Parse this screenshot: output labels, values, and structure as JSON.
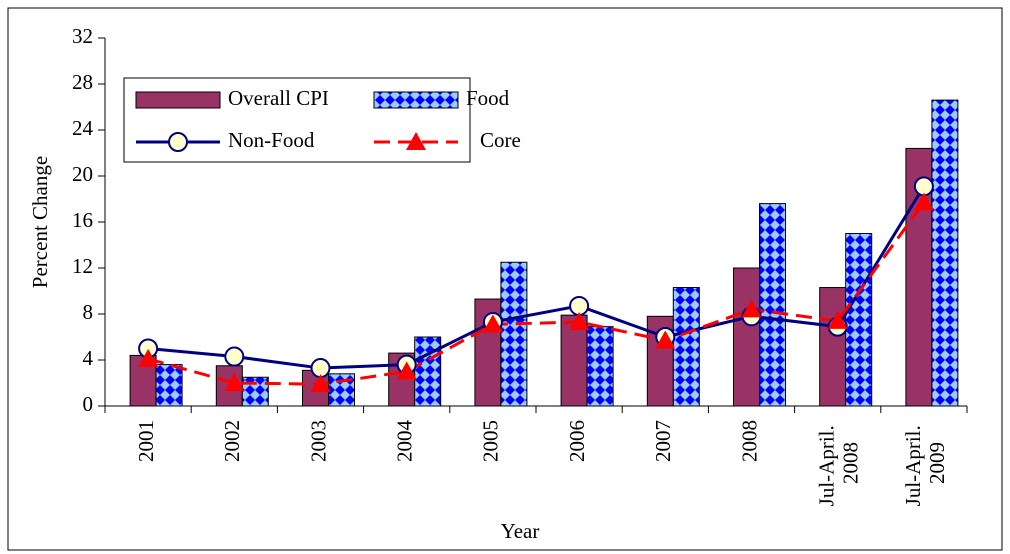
{
  "chart_data": {
    "type": "bar_line",
    "x_label": "Year",
    "y_label": "Percent Change",
    "categories": [
      "2001",
      "2002",
      "2003",
      "2004",
      "2005",
      "2006",
      "2007",
      "2008",
      "Jul-April. 2008",
      "Jul-April. 2009"
    ],
    "series": [
      {
        "name": "Overall CPI",
        "kind": "bar",
        "color": "#993366",
        "values": [
          4.4,
          3.5,
          3.1,
          4.6,
          9.3,
          7.9,
          7.8,
          12.0,
          10.3,
          22.4
        ]
      },
      {
        "name": "Food",
        "kind": "bar",
        "color": "#0000ff",
        "values": [
          3.6,
          2.5,
          2.8,
          6.0,
          12.5,
          6.9,
          10.3,
          17.6,
          15.0,
          26.6
        ]
      },
      {
        "name": "Non-Food",
        "kind": "line",
        "color": "#000080",
        "values": [
          5.0,
          4.3,
          3.3,
          3.6,
          7.3,
          8.7,
          6.0,
          7.8,
          6.9,
          19.1
        ]
      },
      {
        "name": "Core",
        "kind": "line",
        "color": "#ff0000",
        "values": [
          4.1,
          2.0,
          1.9,
          3.0,
          7.1,
          7.3,
          5.7,
          8.4,
          7.4,
          17.7
        ]
      }
    ],
    "ylim": [
      0,
      32
    ],
    "yticks": [
      0,
      4,
      8,
      12,
      16,
      20,
      24,
      28,
      32
    ],
    "legend": "upper left"
  }
}
